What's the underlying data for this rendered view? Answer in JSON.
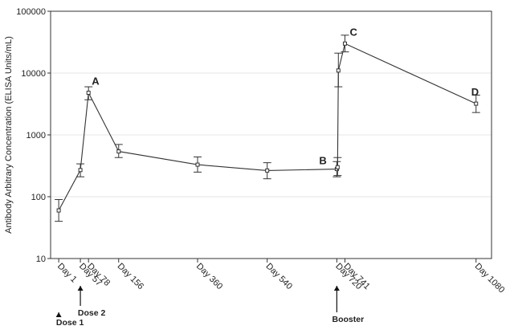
{
  "chart_data": {
    "type": "line",
    "ylabel": "Antibody Arbitrary Concentration (ELISA Units/mL)",
    "xlabel": "",
    "yscale": "log",
    "ylim": [
      10,
      100000
    ],
    "xlim": [
      -20,
      1120
    ],
    "grid": "horizontal",
    "y_ticks": [
      {
        "value": 10,
        "label": "10"
      },
      {
        "value": 100,
        "label": "100"
      },
      {
        "value": 1000,
        "label": "1000"
      },
      {
        "value": 10000,
        "label": "10000"
      },
      {
        "value": 100000,
        "label": "100000"
      }
    ],
    "x_ticks": [
      {
        "value": 1,
        "label": "Day 1"
      },
      {
        "value": 57,
        "label": "Day 57"
      },
      {
        "value": 78,
        "label": "Day 78"
      },
      {
        "value": 156,
        "label": "Day 156"
      },
      {
        "value": 360,
        "label": "Day 360"
      },
      {
        "value": 540,
        "label": "Day 540"
      },
      {
        "value": 720,
        "label": "Day 720"
      },
      {
        "value": 741,
        "label": "Day 741"
      },
      {
        "value": 1080,
        "label": "Day 1080"
      }
    ],
    "points": [
      {
        "x": 1,
        "y": 60,
        "lo": 40,
        "hi": 90
      },
      {
        "x": 57,
        "y": 270,
        "lo": 210,
        "hi": 340
      },
      {
        "x": 78,
        "y": 4800,
        "lo": 3700,
        "hi": 6000
      },
      {
        "x": 156,
        "y": 540,
        "lo": 430,
        "hi": 700
      },
      {
        "x": 360,
        "y": 330,
        "lo": 250,
        "hi": 440
      },
      {
        "x": 540,
        "y": 265,
        "lo": 195,
        "hi": 355
      },
      {
        "x": 720,
        "y": 280,
        "lo": 210,
        "hi": 370
      },
      {
        "x": 722,
        "y": 300,
        "lo": 220,
        "hi": 430
      },
      {
        "x": 724,
        "y": 11000,
        "lo": 6000,
        "hi": 21000
      },
      {
        "x": 741,
        "y": 30000,
        "lo": 22000,
        "hi": 41000
      },
      {
        "x": 1080,
        "y": 3200,
        "lo": 2300,
        "hi": 4400
      }
    ],
    "annotations": [
      {
        "text": "A",
        "x": 78,
        "y": 4800
      },
      {
        "text": "B",
        "x": 720,
        "y": 280
      },
      {
        "text": "C",
        "x": 741,
        "y": 30000
      },
      {
        "text": "D",
        "x": 1080,
        "y": 3200
      }
    ],
    "dose_markers": [
      {
        "label": "Dose 1",
        "x": 1
      },
      {
        "label": "Dose 2",
        "x": 57
      },
      {
        "label": "Booster",
        "x": 720
      }
    ]
  }
}
